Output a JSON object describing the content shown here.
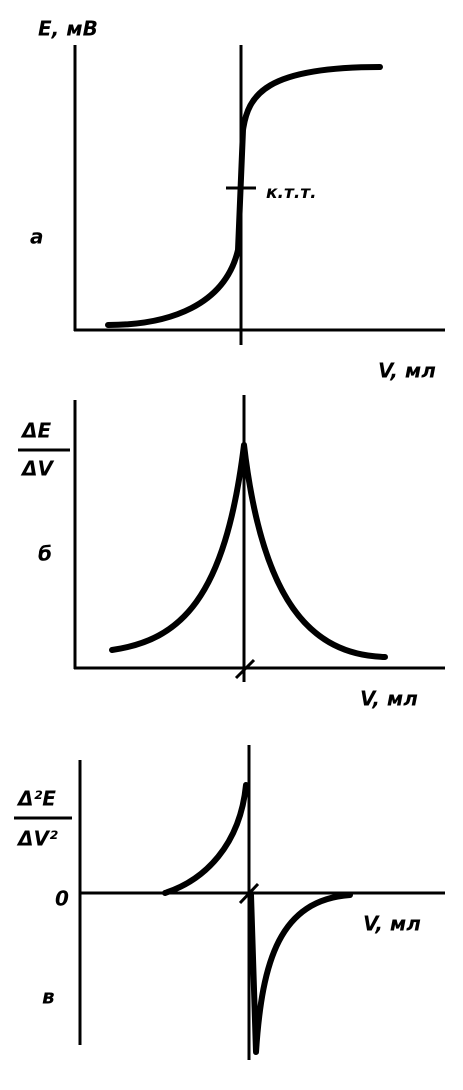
{
  "panel_a": {
    "y_label": "E, мВ",
    "letter": "а",
    "annotation": "к.т.т.",
    "x_label": "V, мл"
  },
  "panel_b": {
    "y_label_top": "ΔE",
    "y_label_bottom": "ΔV",
    "letter": "б",
    "x_label": "V, мл"
  },
  "panel_c": {
    "y_label_top": "Δ²E",
    "y_label_bottom": "ΔV²",
    "zero": "0",
    "letter": "в",
    "x_label": "V, мл"
  }
}
